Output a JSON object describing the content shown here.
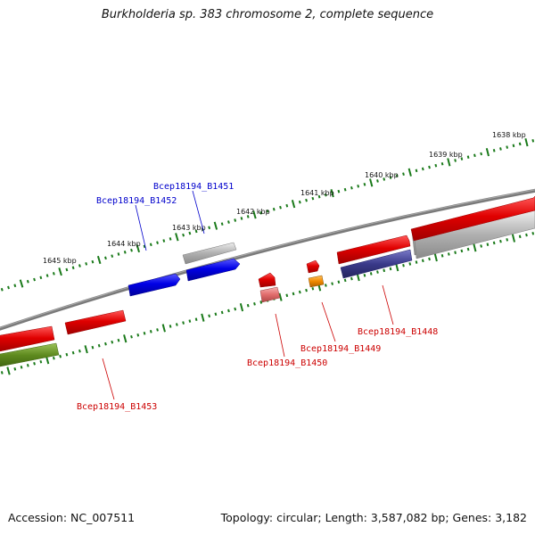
{
  "title": "Burkholderia sp. 383 chromosome 2, complete sequence",
  "footer": {
    "accession": "Accession: NC_007511",
    "summary": "Topology: circular; Length: 3,587,082 bp; Genes: 3,182"
  },
  "colors": {
    "background": "#ffffff",
    "backbone": "#7a7a7a",
    "tick": "#1a7a1a",
    "red": "#e00000",
    "blue": "#0000e6",
    "gray": "#a8a8a8",
    "olive": "#5e8a1e",
    "navy": "#3a3a8a",
    "orange": "#f08a00",
    "pink": "#e06b6b",
    "label_blue": "#0000cc",
    "label_red": "#cc0000"
  },
  "scale_labels": [
    "1645 kbp",
    "1644 kbp",
    "1643 kbp",
    "1642 kbp",
    "1641 kbp",
    "1640 kbp",
    "1639 kbp",
    "1638 kbp"
  ],
  "gene_labels": {
    "b1451": "Bcep18194_B1451",
    "b1452": "Bcep18194_B1452",
    "b1448": "Bcep18194_B1448",
    "b1449": "Bcep18194_B1449",
    "b1450": "Bcep18194_B1450",
    "b1453": "Bcep18194_B1453"
  }
}
